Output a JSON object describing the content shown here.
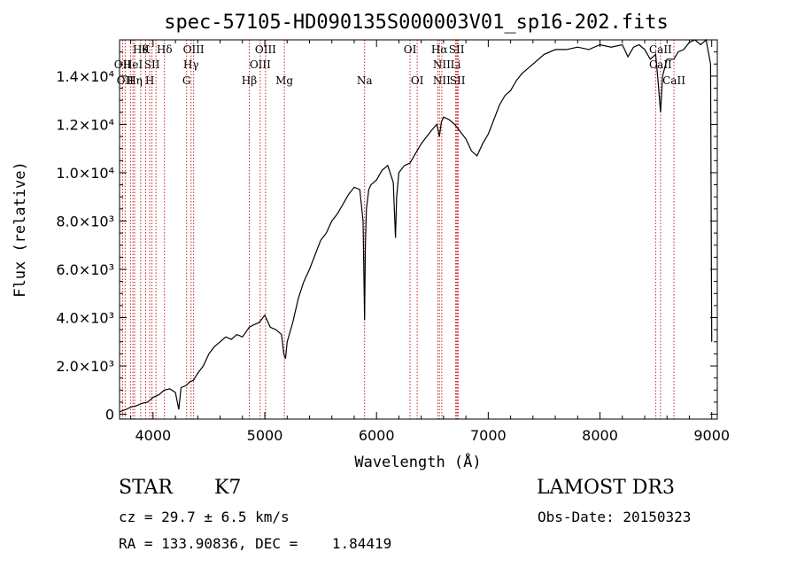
{
  "chart_data": {
    "type": "line",
    "title": "spec-57105-HD090135S000003V01_sp16-202.fits",
    "xlabel": "Wavelength (Å)",
    "ylabel": "Flux (relative)",
    "xlim": [
      3700,
      9050
    ],
    "ylim": [
      -200,
      15500
    ],
    "x_ticks": [
      4000,
      5000,
      6000,
      7000,
      8000,
      9000
    ],
    "y_ticks": [
      {
        "value": 0,
        "label": "0"
      },
      {
        "value": 2000,
        "label": "2.0×10³"
      },
      {
        "value": 4000,
        "label": "4.0×10³"
      },
      {
        "value": 6000,
        "label": "6.0×10³"
      },
      {
        "value": 8000,
        "label": "8.0×10³"
      },
      {
        "value": 10000,
        "label": "1.0×10⁴"
      },
      {
        "value": 12000,
        "label": "1.2×10⁴"
      },
      {
        "value": 14000,
        "label": "1.4×10⁴"
      }
    ],
    "grid": false,
    "line_color": "#000000",
    "marker_line_color": "#cc2222",
    "series": [
      {
        "x": [
          3700,
          3760,
          3800,
          3850,
          3900,
          3950,
          4000,
          4050,
          4100,
          4150,
          4200,
          4230,
          4250,
          4300,
          4330,
          4360,
          4400,
          4450,
          4500,
          4550,
          4600,
          4650,
          4700,
          4750,
          4800,
          4860,
          4900,
          4950,
          5000,
          5050,
          5100,
          5150,
          5170,
          5185,
          5200,
          5250,
          5300,
          5350,
          5400,
          5450,
          5500,
          5550,
          5600,
          5650,
          5700,
          5750,
          5800,
          5850,
          5880,
          5893,
          5900,
          5910,
          5930,
          5950,
          6000,
          6050,
          6100,
          6150,
          6170,
          6180,
          6200,
          6250,
          6300,
          6350,
          6400,
          6450,
          6500,
          6540,
          6563,
          6580,
          6600,
          6650,
          6700,
          6750,
          6800,
          6850,
          6900,
          6950,
          7000,
          7050,
          7100,
          7150,
          7200,
          7250,
          7300,
          7400,
          7500,
          7600,
          7700,
          7800,
          7900,
          8000,
          8100,
          8200,
          8250,
          8300,
          8350,
          8400,
          8450,
          8498,
          8520,
          8542,
          8560,
          8600,
          8662,
          8700,
          8750,
          8800,
          8850,
          8900,
          8950,
          8990,
          9000
        ],
        "y": [
          100,
          200,
          300,
          350,
          450,
          500,
          700,
          800,
          1000,
          1050,
          900,
          200,
          1100,
          1200,
          1350,
          1400,
          1700,
          2000,
          2500,
          2800,
          3000,
          3200,
          3100,
          3300,
          3200,
          3600,
          3700,
          3800,
          4100,
          3600,
          3500,
          3300,
          2500,
          2300,
          3000,
          3800,
          4800,
          5500,
          6000,
          6600,
          7200,
          7500,
          8000,
          8300,
          8700,
          9100,
          9400,
          9300,
          8000,
          3900,
          7000,
          8500,
          9300,
          9500,
          9700,
          10100,
          10300,
          9600,
          7300,
          9000,
          10000,
          10300,
          10400,
          10800,
          11200,
          11500,
          11800,
          12000,
          11500,
          12100,
          12300,
          12200,
          12000,
          11700,
          11400,
          10900,
          10700,
          11200,
          11600,
          12200,
          12800,
          13200,
          13400,
          13800,
          14100,
          14500,
          14900,
          15100,
          15100,
          15200,
          15100,
          15300,
          15200,
          15300,
          14800,
          15200,
          15300,
          15100,
          14700,
          14900,
          13800,
          12500,
          14000,
          14700,
          14700,
          15000,
          15100,
          15400,
          15500,
          15300,
          15500,
          14500,
          3000
        ]
      }
    ],
    "line_markers": [
      {
        "wavelength": 3750,
        "label": "",
        "row": 0
      },
      {
        "wavelength": 3798,
        "label": "",
        "row": 0
      },
      {
        "wavelength": 3835,
        "label": "",
        "row": 0
      },
      {
        "wavelength": 3889,
        "label": "Hθ",
        "row": 0
      },
      {
        "wavelength": 3934,
        "label": "K",
        "row": 0
      },
      {
        "wavelength": 3970,
        "label": "",
        "row": 0
      },
      {
        "wavelength": 4026,
        "label": "",
        "row": 0
      },
      {
        "wavelength": 4102,
        "label": "Hδ",
        "row": 0
      },
      {
        "wavelength": 4300,
        "label": "",
        "row": 0
      },
      {
        "wavelength": 4340,
        "label": "",
        "row": 0
      },
      {
        "wavelength": 4363,
        "label": "OIII",
        "row": 0
      },
      {
        "wavelength": 4861,
        "label": "",
        "row": 0
      },
      {
        "wavelength": 4959,
        "label": "",
        "row": 0
      },
      {
        "wavelength": 5007,
        "label": "OIII",
        "row": 0
      },
      {
        "wavelength": 5175,
        "label": "",
        "row": 0
      },
      {
        "wavelength": 5893,
        "label": "",
        "row": 0
      },
      {
        "wavelength": 6300,
        "label": "OI",
        "row": 0
      },
      {
        "wavelength": 6364,
        "label": "",
        "row": 0
      },
      {
        "wavelength": 6548,
        "label": "",
        "row": 0
      },
      {
        "wavelength": 6563,
        "label": "Hα",
        "row": 0
      },
      {
        "wavelength": 6584,
        "label": "",
        "row": 0
      },
      {
        "wavelength": 6708,
        "label": "",
        "row": 0
      },
      {
        "wavelength": 6717,
        "label": "SII",
        "row": 0
      },
      {
        "wavelength": 6731,
        "label": "",
        "row": 0
      },
      {
        "wavelength": 8498,
        "label": "",
        "row": 0
      },
      {
        "wavelength": 8542,
        "label": "CaII",
        "row": 0
      },
      {
        "wavelength": 8662,
        "label": "",
        "row": 0
      },
      {
        "wavelength": 3727,
        "label": "OII",
        "row": 1
      },
      {
        "wavelength": 3820,
        "label": "HeI",
        "row": 1
      },
      {
        "wavelength": 3990,
        "label": "SII",
        "row": 1
      },
      {
        "wavelength": 4340,
        "label": "Hγ",
        "row": 1
      },
      {
        "wavelength": 4959,
        "label": "OIII",
        "row": 1
      },
      {
        "wavelength": 6584,
        "label": "NII",
        "row": 1
      },
      {
        "wavelength": 6708,
        "label": "Li",
        "row": 1
      },
      {
        "wavelength": 8542,
        "label": "CaII",
        "row": 1
      },
      {
        "wavelength": 3750,
        "label": "OII",
        "row": 2
      },
      {
        "wavelength": 3835,
        "label": "Hη",
        "row": 2
      },
      {
        "wavelength": 3970,
        "label": "H",
        "row": 2
      },
      {
        "wavelength": 4300,
        "label": "G",
        "row": 2
      },
      {
        "wavelength": 4861,
        "label": "Hβ",
        "row": 2
      },
      {
        "wavelength": 5175,
        "label": "Mg",
        "row": 2
      },
      {
        "wavelength": 5893,
        "label": "Na",
        "row": 2
      },
      {
        "wavelength": 6364,
        "label": "OI",
        "row": 2
      },
      {
        "wavelength": 6584,
        "label": "NII",
        "row": 2
      },
      {
        "wavelength": 6725,
        "label": "SII",
        "row": 2
      },
      {
        "wavelength": 8662,
        "label": "CaII",
        "row": 2
      }
    ]
  },
  "info": {
    "object_class": "STAR",
    "subclass": "K7",
    "survey": "LAMOST DR3",
    "cz": "cz = 29.7 ± 6.5 km/s",
    "obs_date": "Obs-Date: 20150323",
    "coords": "RA = 133.90836, DEC =    1.84419"
  }
}
